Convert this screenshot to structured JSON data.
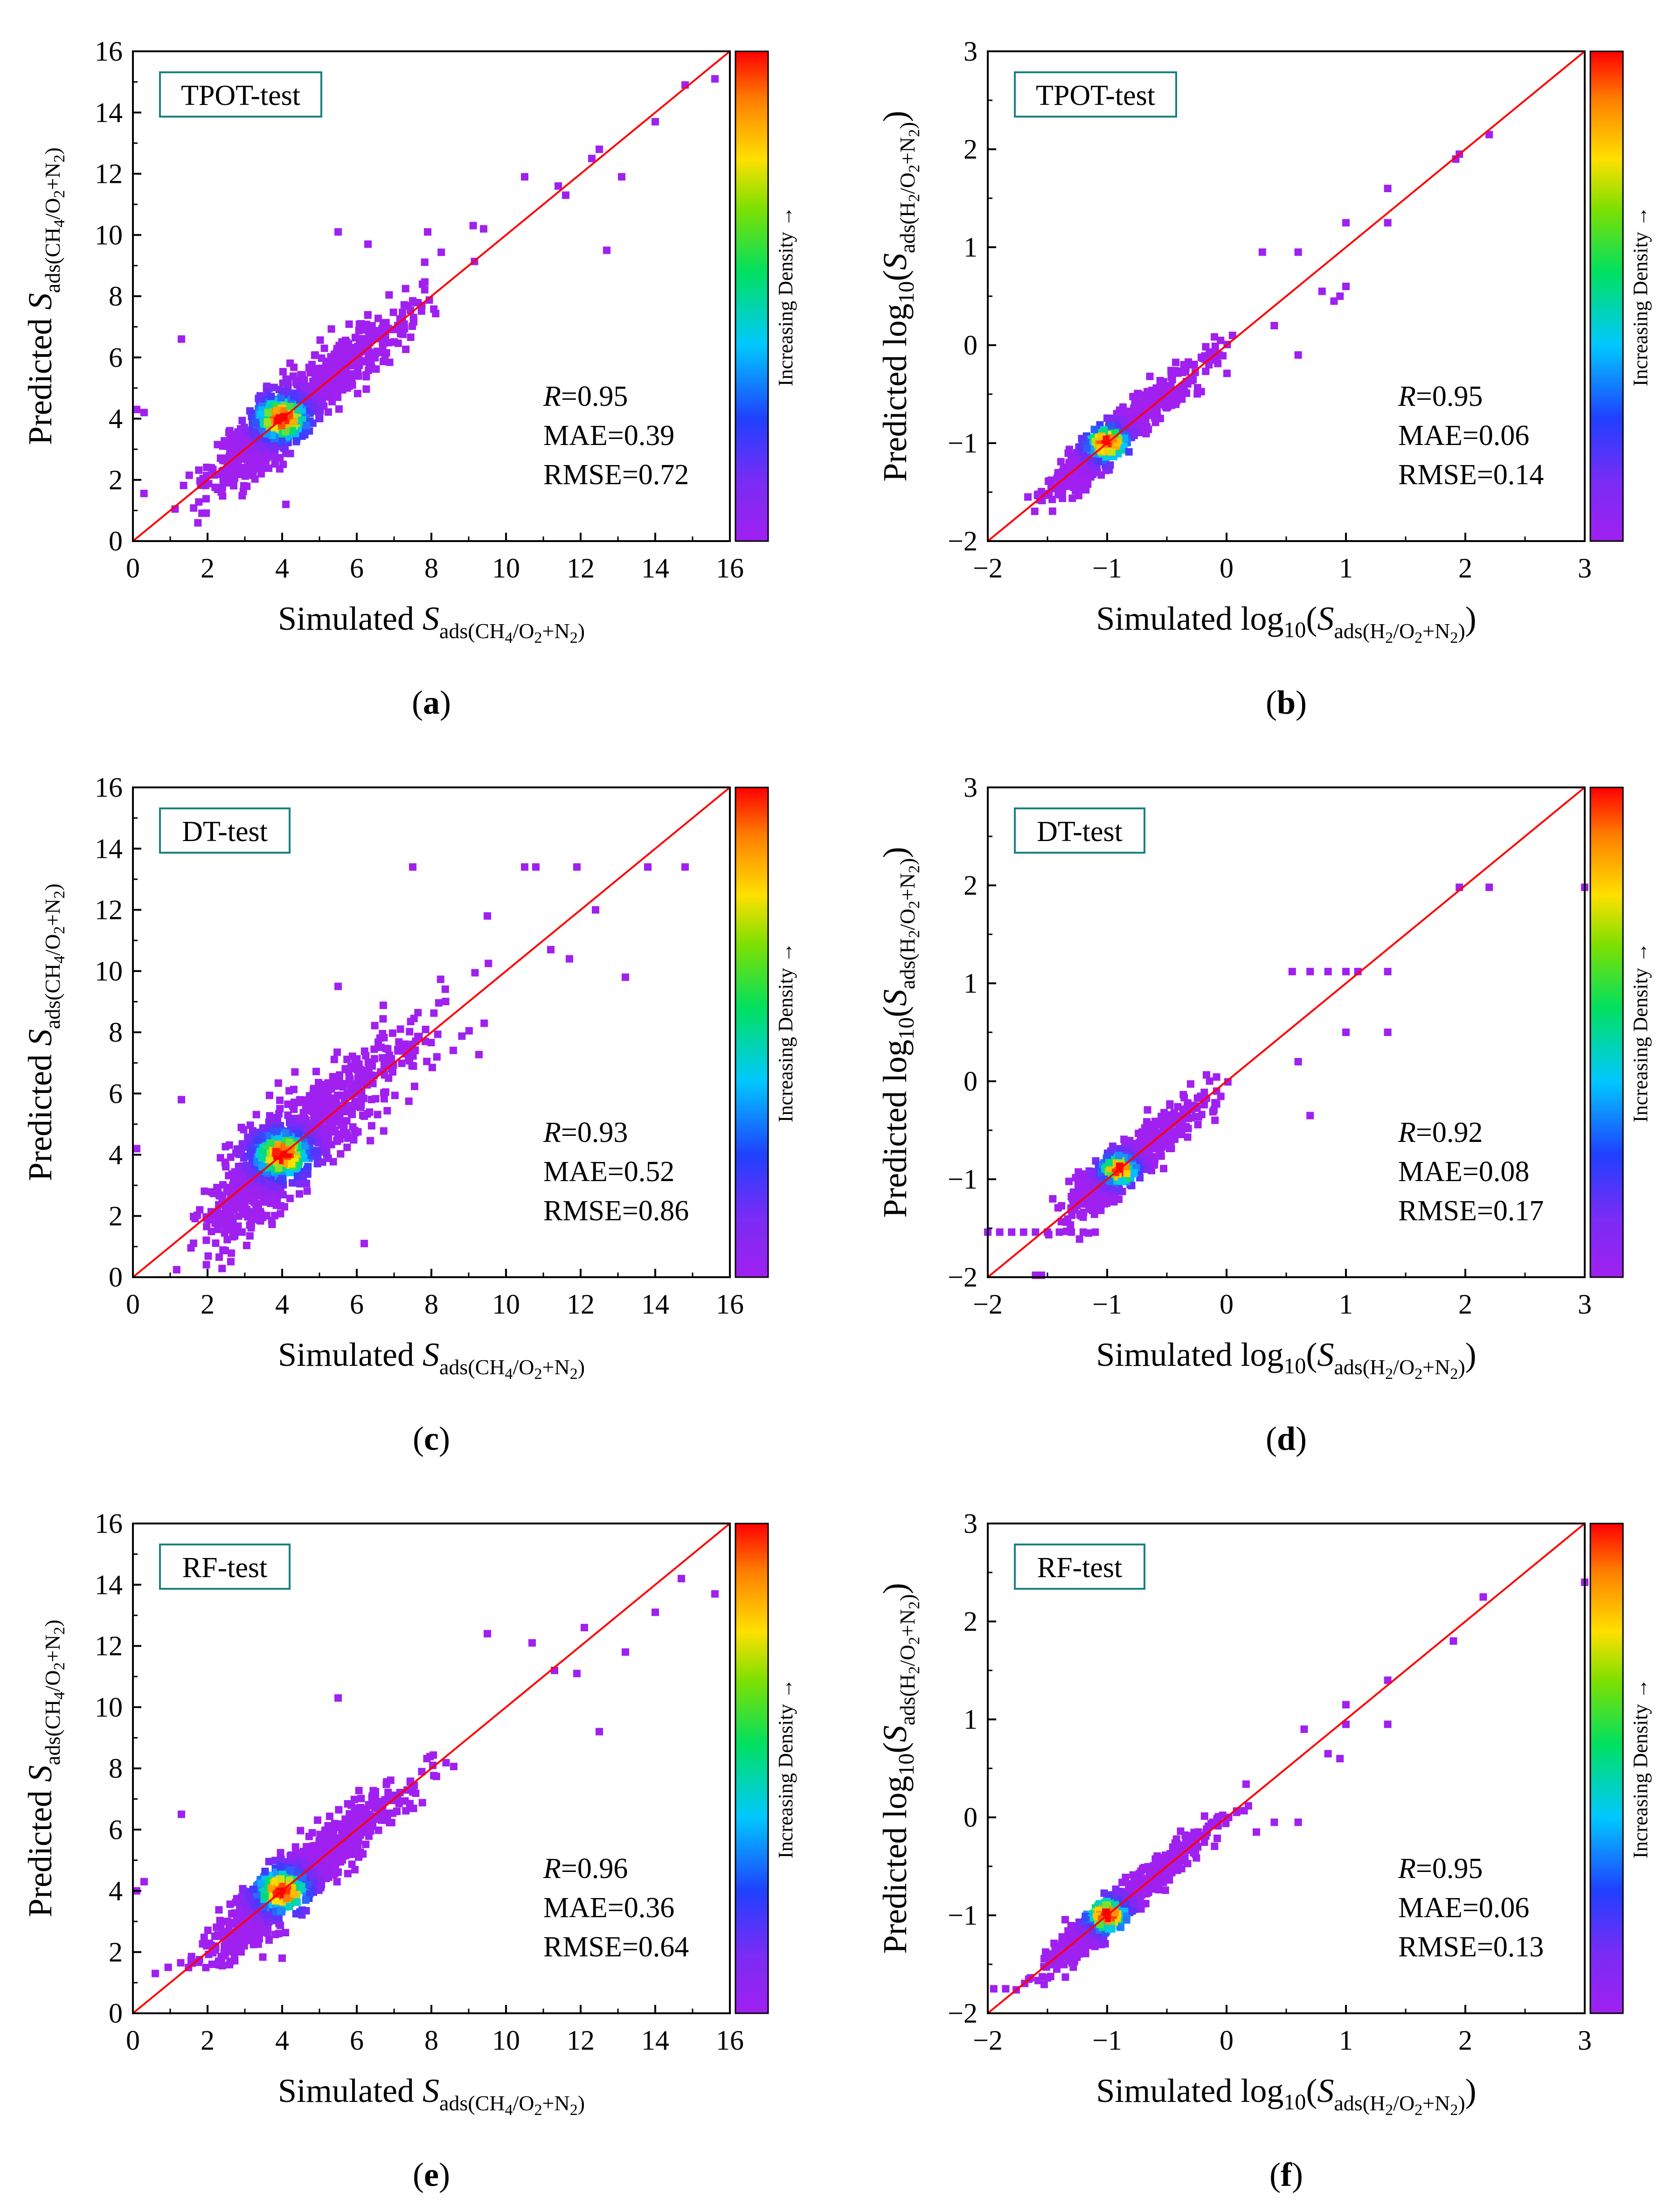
{
  "legend_label": "Increasing Density →",
  "chart_data": [
    {
      "type": "scatter",
      "panel": "(a)",
      "panel_letter": "a",
      "model_label": "TPOT-test",
      "xlim": [
        0,
        16
      ],
      "ylim": [
        0,
        16
      ],
      "xticks": [
        "0",
        "2",
        "4",
        "6",
        "8",
        "10",
        "12",
        "14",
        "16"
      ],
      "yticks": [
        "0",
        "2",
        "4",
        "6",
        "8",
        "10",
        "12",
        "14",
        "16"
      ],
      "xlabel": {
        "pre": "Simulated ",
        "var": "S",
        "sub": "ads(CH",
        "sub2": "4",
        "sub3": "/O",
        "sub4": "2",
        "sub5": "+N",
        "sub6": "2",
        "sub7": ")",
        "post": ""
      },
      "ylabel": {
        "pre": "Predicted ",
        "var": "S",
        "sub": "ads(CH",
        "sub2": "4",
        "sub3": "/O",
        "sub4": "2",
        "sub5": "+N",
        "sub6": "2",
        "sub7": ")",
        "post": ""
      },
      "stats": {
        "r_var": "R",
        "r": "=0.95",
        "mae": "MAE=0.39",
        "rmse": "RMSE=0.72"
      },
      "gen": {
        "center": [
          4,
          4
        ],
        "spread": 1.6,
        "noise": 0.55,
        "n": 1100,
        "range": [
          0,
          16
        ],
        "seed": 11,
        "outliers": [
          [
            1.3,
            6.6
          ],
          [
            0.1,
            4.3
          ],
          [
            0.3,
            4.2
          ],
          [
            5.5,
            10.1
          ],
          [
            12.7,
            9.5
          ],
          [
            11.6,
            11.3
          ],
          [
            12.3,
            12.5
          ],
          [
            14.0,
            13.7
          ],
          [
            14.8,
            14.9
          ],
          [
            15.6,
            15.1
          ],
          [
            6.3,
            9.7
          ],
          [
            7.9,
            10.1
          ],
          [
            10.5,
            11.9
          ],
          [
            13.1,
            11.9
          ],
          [
            4.1,
            1.2
          ],
          [
            9.4,
            10.2
          ],
          [
            12.5,
            12.8
          ],
          [
            11.4,
            11.6
          ]
        ]
      }
    },
    {
      "type": "scatter",
      "panel": "(b)",
      "panel_letter": "b",
      "model_label": "TPOT-test",
      "xlim": [
        -2,
        3
      ],
      "ylim": [
        -2,
        3
      ],
      "xticks": [
        "−2",
        "−1",
        "0",
        "1",
        "2",
        "3"
      ],
      "yticks": [
        "−2",
        "−1",
        "0",
        "1",
        "2",
        "3"
      ],
      "xlabel": {
        "pre": "Simulated log",
        "sub0": "10",
        "open": "(",
        "var": "S",
        "sub": "ads(H",
        "sub2": "2",
        "sub3": "/O",
        "sub4": "2",
        "sub5": "+N",
        "sub6": "2",
        "sub7": ")",
        "post": ")"
      },
      "ylabel": {
        "pre": "Predicted log",
        "sub0": "10",
        "open": "(",
        "var": "S",
        "sub": "ads(H",
        "sub2": "2",
        "sub3": "/O",
        "sub4": "2",
        "sub5": "+N",
        "sub6": "2",
        "sub7": ")",
        "post": ")"
      },
      "stats": {
        "r_var": "R",
        "r": "=0.95",
        "mae": "MAE=0.06",
        "rmse": "RMSE=0.14"
      },
      "gen": {
        "center": [
          -1.0,
          -1.0
        ],
        "spread": 0.4,
        "noise": 0.1,
        "n": 800,
        "range": [
          -2,
          0.1
        ],
        "seed": 23,
        "outliers": [
          [
            1.95,
            1.95
          ],
          [
            1.92,
            1.9
          ],
          [
            2.2,
            2.15
          ],
          [
            1.35,
            1.6
          ],
          [
            1.35,
            1.25
          ],
          [
            1.0,
            1.25
          ],
          [
            0.3,
            0.95
          ],
          [
            0.6,
            0.95
          ],
          [
            0.8,
            0.55
          ],
          [
            0.95,
            0.5
          ],
          [
            1.0,
            0.6
          ],
          [
            0.9,
            0.45
          ],
          [
            0.4,
            0.2
          ],
          [
            0.05,
            0.1
          ],
          [
            0.6,
            -0.1
          ]
        ]
      }
    },
    {
      "type": "scatter",
      "panel": "(c)",
      "panel_letter": "c",
      "model_label": "DT-test",
      "xlim": [
        0,
        16
      ],
      "ylim": [
        0,
        16
      ],
      "xticks": [
        "0",
        "2",
        "4",
        "6",
        "8",
        "10",
        "12",
        "14",
        "16"
      ],
      "yticks": [
        "0",
        "2",
        "4",
        "6",
        "8",
        "10",
        "12",
        "14",
        "16"
      ],
      "xlabel": {
        "pre": "Simulated ",
        "var": "S",
        "sub": "ads(CH",
        "sub2": "4",
        "sub3": "/O",
        "sub4": "2",
        "sub5": "+N",
        "sub6": "2",
        "sub7": ")",
        "post": ""
      },
      "ylabel": {
        "pre": "Predicted ",
        "var": "S",
        "sub": "ads(CH",
        "sub2": "4",
        "sub3": "/O",
        "sub4": "2",
        "sub5": "+N",
        "sub6": "2",
        "sub7": ")",
        "post": ""
      },
      "stats": {
        "r_var": "R",
        "r": "=0.93",
        "mae": "MAE=0.52",
        "rmse": "RMSE=0.86"
      },
      "gen": {
        "center": [
          4,
          4
        ],
        "spread": 1.7,
        "noise": 0.75,
        "n": 1100,
        "range": [
          0,
          16
        ],
        "seed": 37,
        "outliers": [
          [
            7.5,
            13.4
          ],
          [
            10.5,
            13.4
          ],
          [
            10.8,
            13.4
          ],
          [
            11.9,
            13.4
          ],
          [
            13.8,
            13.4
          ],
          [
            14.8,
            13.4
          ],
          [
            12.4,
            12.0
          ],
          [
            9.5,
            11.8
          ],
          [
            5.5,
            9.5
          ],
          [
            13.2,
            9.8
          ],
          [
            6.2,
            1.1
          ],
          [
            1.3,
            5.8
          ],
          [
            0.1,
            4.2
          ],
          [
            11.2,
            10.7
          ],
          [
            11.7,
            10.4
          ]
        ]
      }
    },
    {
      "type": "scatter",
      "panel": "(d)",
      "panel_letter": "d",
      "model_label": "DT-test",
      "xlim": [
        -2,
        3
      ],
      "ylim": [
        -2,
        3
      ],
      "xticks": [
        "−2",
        "−1",
        "0",
        "1",
        "2",
        "3"
      ],
      "yticks": [
        "−2",
        "−1",
        "0",
        "1",
        "2",
        "3"
      ],
      "xlabel": {
        "pre": "Simulated log",
        "sub0": "10",
        "open": "(",
        "var": "S",
        "sub": "ads(H",
        "sub2": "2",
        "sub3": "/O",
        "sub4": "2",
        "sub5": "+N",
        "sub6": "2",
        "sub7": ")",
        "post": ")"
      },
      "ylabel": {
        "pre": "Predicted log",
        "sub0": "10",
        "open": "(",
        "var": "S",
        "sub": "ads(H",
        "sub2": "2",
        "sub3": "/O",
        "sub4": "2",
        "sub5": "+N",
        "sub6": "2",
        "sub7": ")",
        "post": ")"
      },
      "stats": {
        "r_var": "R",
        "r": "=0.92",
        "mae": "MAE=0.08",
        "rmse": "RMSE=0.17"
      },
      "gen": {
        "center": [
          -0.9,
          -0.9
        ],
        "spread": 0.35,
        "noise": 0.13,
        "n": 650,
        "range": [
          -1.6,
          0.2
        ],
        "seed": 41,
        "outliers": [
          [
            1.95,
            1.98
          ],
          [
            2.2,
            1.98
          ],
          [
            3.0,
            1.98
          ],
          [
            0.55,
            1.12
          ],
          [
            0.7,
            1.12
          ],
          [
            0.85,
            1.12
          ],
          [
            1.0,
            1.12
          ],
          [
            1.1,
            1.12
          ],
          [
            1.35,
            1.12
          ],
          [
            1.0,
            0.5
          ],
          [
            1.35,
            0.5
          ],
          [
            0.6,
            0.2
          ],
          [
            0.7,
            -0.35
          ],
          [
            -1.6,
            -1.98
          ],
          [
            -1.55,
            -1.98
          ],
          [
            -2.0,
            -1.54
          ],
          [
            -1.9,
            -1.54
          ],
          [
            -1.8,
            -1.54
          ],
          [
            -1.7,
            -1.54
          ],
          [
            -1.6,
            -1.54
          ],
          [
            -1.5,
            -1.54
          ],
          [
            -1.4,
            -1.54
          ],
          [
            -1.3,
            -1.54
          ],
          [
            -1.2,
            -1.54
          ],
          [
            -1.1,
            -1.54
          ]
        ]
      }
    },
    {
      "type": "scatter",
      "panel": "(e)",
      "panel_letter": "e",
      "model_label": "RF-test",
      "xlim": [
        0,
        16
      ],
      "ylim": [
        0,
        16
      ],
      "xticks": [
        "0",
        "2",
        "4",
        "6",
        "8",
        "10",
        "12",
        "14",
        "16"
      ],
      "yticks": [
        "0",
        "2",
        "4",
        "6",
        "8",
        "10",
        "12",
        "14",
        "16"
      ],
      "xlabel": {
        "pre": "Simulated ",
        "var": "S",
        "sub": "ads(CH",
        "sub2": "4",
        "sub3": "/O",
        "sub4": "2",
        "sub5": "+N",
        "sub6": "2",
        "sub7": ")",
        "post": ""
      },
      "ylabel": {
        "pre": "Predicted ",
        "var": "S",
        "sub": "ads(CH",
        "sub2": "4",
        "sub3": "/O",
        "sub4": "2",
        "sub5": "+N",
        "sub6": "2",
        "sub7": ")",
        "post": ""
      },
      "stats": {
        "r_var": "R",
        "r": "=0.96",
        "mae": "MAE=0.36",
        "rmse": "RMSE=0.64"
      },
      "gen": {
        "center": [
          4,
          4
        ],
        "spread": 1.6,
        "noise": 0.5,
        "n": 1100,
        "range": [
          0,
          16
        ],
        "seed": 53,
        "outliers": [
          [
            1.3,
            6.5
          ],
          [
            0.1,
            4.0
          ],
          [
            0.3,
            4.3
          ],
          [
            5.5,
            10.3
          ],
          [
            12.5,
            9.2
          ],
          [
            13.2,
            11.8
          ],
          [
            14.0,
            13.1
          ],
          [
            14.7,
            14.2
          ],
          [
            15.6,
            13.7
          ],
          [
            12.1,
            12.6
          ],
          [
            9.5,
            12.4
          ],
          [
            11.9,
            11.1
          ],
          [
            0.6,
            1.3
          ],
          [
            11.3,
            11.2
          ],
          [
            10.7,
            12.1
          ],
          [
            4.0,
            1.8
          ]
        ]
      }
    },
    {
      "type": "scatter",
      "panel": "(f)",
      "panel_letter": "f",
      "model_label": "RF-test",
      "xlim": [
        -2,
        3
      ],
      "ylim": [
        -2,
        3
      ],
      "xticks": [
        "−2",
        "−1",
        "0",
        "1",
        "2",
        "3"
      ],
      "yticks": [
        "−2",
        "−1",
        "0",
        "1",
        "2",
        "3"
      ],
      "xlabel": {
        "pre": "Simulated log",
        "sub0": "10",
        "open": "(",
        "var": "S",
        "sub": "ads(H",
        "sub2": "2",
        "sub3": "/O",
        "sub4": "2",
        "sub5": "+N",
        "sub6": "2",
        "sub7": ")",
        "post": ")"
      },
      "ylabel": {
        "pre": "Predicted log",
        "sub0": "10",
        "open": "(",
        "var": "S",
        "sub": "ads(H",
        "sub2": "2",
        "sub3": "/O",
        "sub4": "2",
        "sub5": "+N",
        "sub6": "2",
        "sub7": ")",
        "post": ")"
      },
      "stats": {
        "r_var": "R",
        "r": "=0.95",
        "mae": "MAE=0.06",
        "rmse": "RMSE=0.13"
      },
      "gen": {
        "center": [
          -1.0,
          -1.0
        ],
        "spread": 0.4,
        "noise": 0.09,
        "n": 800,
        "range": [
          -2,
          0.2
        ],
        "seed": 67,
        "outliers": [
          [
            2.15,
            2.25
          ],
          [
            1.9,
            1.8
          ],
          [
            3.0,
            2.4
          ],
          [
            1.35,
            1.4
          ],
          [
            1.35,
            0.95
          ],
          [
            1.0,
            1.15
          ],
          [
            1.0,
            0.95
          ],
          [
            0.85,
            0.65
          ],
          [
            0.65,
            0.9
          ],
          [
            0.95,
            0.6
          ],
          [
            0.4,
            -0.05
          ],
          [
            0.6,
            -0.05
          ],
          [
            0.25,
            -0.15
          ],
          [
            -1.95,
            -1.75
          ],
          [
            -1.85,
            -1.75
          ]
        ]
      }
    }
  ]
}
